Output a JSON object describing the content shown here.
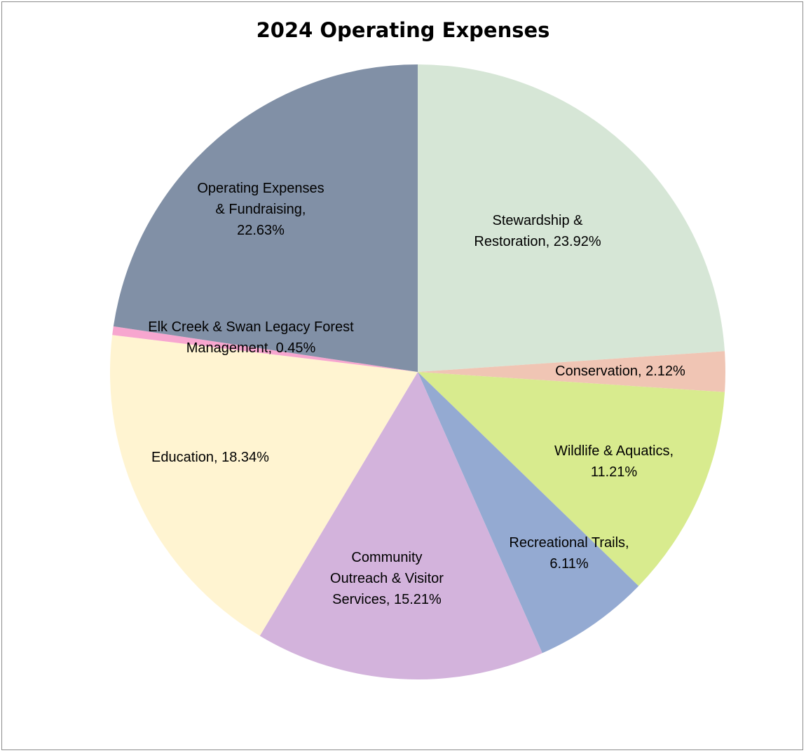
{
  "chart_data": {
    "type": "pie",
    "title": "2024 Operating Expenses",
    "start": "12 o'clock",
    "direction": "clockwise",
    "slices": [
      {
        "name": "Stewardship & Restoration",
        "value": 23.92,
        "color": "#d6e6d6",
        "label_lines": [
          "Stewardship &",
          "Restoration, 23.92%"
        ]
      },
      {
        "name": "Conservation",
        "value": 2.12,
        "color": "#f0c5b4",
        "label_lines": [
          "Conservation, 2.12%"
        ]
      },
      {
        "name": "Wildlife & Aquatics",
        "value": 11.21,
        "color": "#d8eb8e",
        "label_lines": [
          "Wildlife & Aquatics,",
          "11.21%"
        ]
      },
      {
        "name": "Recreational Trails",
        "value": 6.11,
        "color": "#94aad2",
        "label_lines": [
          "Recreational Trails,",
          "6.11%"
        ]
      },
      {
        "name": "Community Outreach & Visitor Services",
        "value": 15.21,
        "color": "#d3b3dc",
        "label_lines": [
          "Community",
          "Outreach & Visitor",
          "Services, 15.21%"
        ]
      },
      {
        "name": "Education",
        "value": 18.34,
        "color": "#fff4d1",
        "label_lines": [
          "Education, 18.34%"
        ]
      },
      {
        "name": "Elk Creek & Swan Legacy Forest Management",
        "value": 0.45,
        "color": "#f7a6cf",
        "label_lines": [
          "Elk Creek & Swan Legacy Forest",
          "Management, 0.45%"
        ]
      },
      {
        "name": "Operating Expenses & Fundraising",
        "value": 22.63,
        "color": "#8190a6",
        "label_lines": [
          "Operating Expenses",
          "& Fundraising,",
          "22.63%"
        ]
      }
    ]
  }
}
